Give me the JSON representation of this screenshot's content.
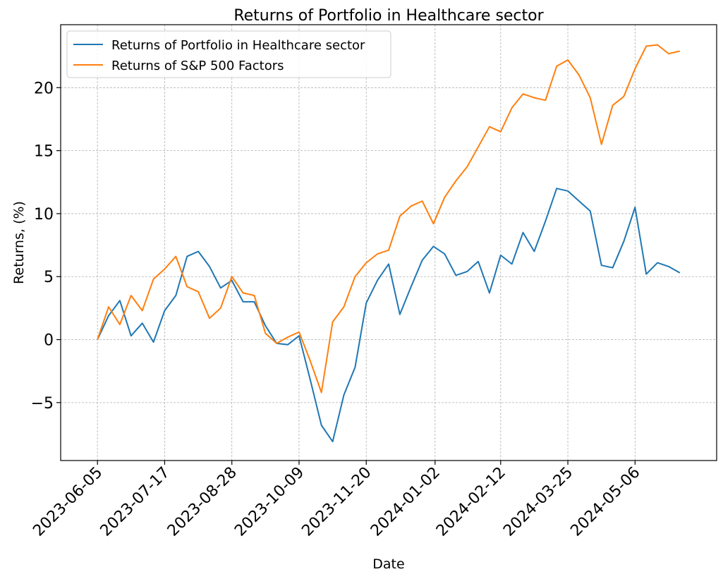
{
  "chart_data": {
    "type": "line",
    "title": "Returns of Portfolio in Healthcare sector",
    "xlabel": "Date",
    "ylabel": "Returns, (%)",
    "grid": true,
    "legend_position": "top-left",
    "x_ticks": [
      "2023-06-05",
      "2023-07-17",
      "2023-08-28",
      "2023-10-09",
      "2023-11-20",
      "2024-01-02",
      "2024-02-12",
      "2024-03-25",
      "2024-05-06"
    ],
    "y_ticks": [
      -5,
      0,
      5,
      10,
      15,
      20
    ],
    "y_tick_labels": [
      "−5",
      "0",
      "5",
      "10",
      "15",
      "20"
    ],
    "ylim": [
      -9.6,
      25.0
    ],
    "x": [
      "2023-06-05",
      "2023-06-12",
      "2023-06-19",
      "2023-06-26",
      "2023-07-03",
      "2023-07-10",
      "2023-07-17",
      "2023-07-24",
      "2023-07-31",
      "2023-08-07",
      "2023-08-14",
      "2023-08-21",
      "2023-08-28",
      "2023-09-04",
      "2023-09-11",
      "2023-09-18",
      "2023-09-25",
      "2023-10-02",
      "2023-10-09",
      "2023-10-16",
      "2023-10-23",
      "2023-10-30",
      "2023-11-06",
      "2023-11-13",
      "2023-11-20",
      "2023-11-27",
      "2023-12-04",
      "2023-12-11",
      "2023-12-18",
      "2023-12-25",
      "2024-01-01",
      "2024-01-08",
      "2024-01-15",
      "2024-01-22",
      "2024-01-29",
      "2024-02-05",
      "2024-02-12",
      "2024-02-19",
      "2024-02-26",
      "2024-03-04",
      "2024-03-11",
      "2024-03-18",
      "2024-03-25",
      "2024-04-01",
      "2024-04-08",
      "2024-04-15",
      "2024-04-22",
      "2024-04-29",
      "2024-05-06",
      "2024-05-13",
      "2024-05-20",
      "2024-05-27",
      "2024-06-03"
    ],
    "x_range": [
      "2023-05-13",
      "2024-06-26"
    ],
    "series": [
      {
        "name": "Returns of Portfolio in Healthcare sector",
        "color": "#1f77b4",
        "values": [
          0.0,
          1.9,
          3.1,
          0.3,
          1.3,
          -0.2,
          2.3,
          3.5,
          6.6,
          7.0,
          5.8,
          4.1,
          4.7,
          3.0,
          3.0,
          1.1,
          -0.3,
          -0.4,
          0.3,
          -3.2,
          -6.8,
          -8.1,
          -4.4,
          -2.2,
          2.9,
          4.7,
          6.0,
          2.0,
          4.2,
          6.3,
          7.4,
          6.8,
          5.1,
          5.4,
          6.2,
          3.7,
          6.7,
          6.0,
          8.5,
          7.0,
          9.4,
          12.0,
          11.8,
          11.0,
          10.2,
          5.9,
          5.7,
          7.8,
          10.5,
          5.2,
          6.1,
          5.8,
          5.3
        ]
      },
      {
        "name": "Returns of S&P 500 Factors",
        "color": "#ff7f0e",
        "values": [
          0.0,
          2.6,
          1.2,
          3.5,
          2.3,
          4.8,
          5.6,
          6.6,
          4.2,
          3.8,
          1.7,
          2.5,
          5.0,
          3.7,
          3.5,
          0.5,
          -0.3,
          0.2,
          0.6,
          -1.7,
          -4.2,
          1.4,
          2.6,
          5.0,
          6.1,
          6.8,
          7.1,
          9.8,
          10.6,
          11.0,
          9.2,
          11.3,
          12.6,
          13.7,
          15.3,
          16.9,
          16.5,
          18.4,
          19.5,
          19.2,
          19.0,
          21.7,
          22.2,
          21.0,
          19.2,
          15.5,
          18.6,
          19.3,
          21.5,
          23.3,
          23.4,
          22.7,
          22.9
        ]
      }
    ]
  }
}
